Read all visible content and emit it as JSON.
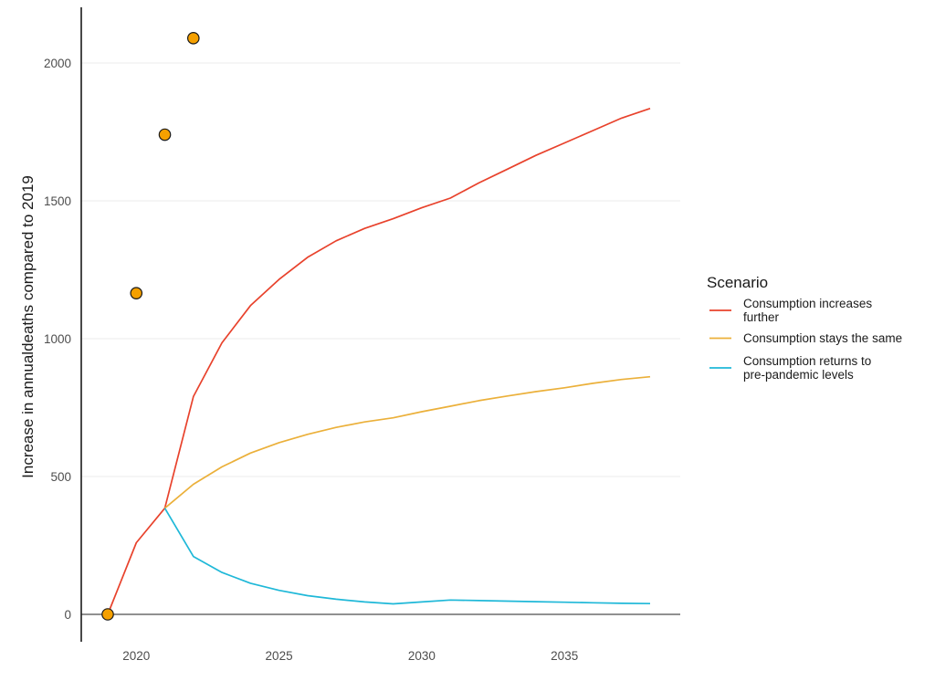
{
  "chart_data": {
    "type": "line",
    "title": "",
    "xlabel": "",
    "ylabel": "Increase in annualdeaths compared to 2019",
    "xlim": [
      2018.1,
      2038.3
    ],
    "ylim": [
      -100,
      2200
    ],
    "x_ticks": [
      2020,
      2025,
      2030,
      2035
    ],
    "x_tick_labels": [
      "2020",
      "2025",
      "2030",
      "2035"
    ],
    "y_ticks": [
      0,
      500,
      1000,
      1500,
      2000
    ],
    "y_tick_labels": [
      "0",
      "500",
      "1000",
      "1500",
      "2000"
    ],
    "grid": true,
    "legend": {
      "title": "Scenario",
      "placement": "right",
      "entries": [
        {
          "lines": [
            "Consumption increases",
            "further"
          ],
          "color": "#e8422c"
        },
        {
          "lines": [
            "Consumption stays the same"
          ],
          "color": "#ebb03a"
        },
        {
          "lines": [
            "Consumption returns to",
            "pre-pandemic levels"
          ],
          "color": "#1fb8d8"
        }
      ]
    },
    "series": [
      {
        "name": "Consumption increases further",
        "color": "#e8422c",
        "x": [
          2019,
          2020,
          2021,
          2022,
          2023,
          2024,
          2025,
          2026,
          2027,
          2028,
          2029,
          2030,
          2031,
          2032,
          2033,
          2034,
          2035,
          2036,
          2037,
          2038
        ],
        "y": [
          0,
          260,
          385,
          790,
          985,
          1120,
          1215,
          1295,
          1355,
          1400,
          1435,
          1475,
          1510,
          1565,
          1615,
          1665,
          1710,
          1755,
          1800,
          1835
        ]
      },
      {
        "name": "Consumption stays the same",
        "color": "#ebb03a",
        "x": [
          2021,
          2022,
          2023,
          2024,
          2025,
          2026,
          2027,
          2028,
          2029,
          2030,
          2031,
          2032,
          2033,
          2034,
          2035,
          2036,
          2037,
          2038
        ],
        "y": [
          385,
          472,
          535,
          585,
          623,
          653,
          678,
          698,
          713,
          735,
          755,
          775,
          792,
          808,
          822,
          838,
          852,
          862
        ]
      },
      {
        "name": "Consumption returns to pre-pandemic levels",
        "color": "#1fb8d8",
        "x": [
          2021,
          2022,
          2023,
          2024,
          2025,
          2026,
          2027,
          2028,
          2029,
          2030,
          2031,
          2032,
          2033,
          2034,
          2035,
          2036,
          2037,
          2038
        ],
        "y": [
          385,
          210,
          152,
          113,
          87,
          68,
          55,
          45,
          38,
          45,
          52,
          50,
          48,
          46,
          44,
          42,
          40,
          39
        ]
      }
    ],
    "observed_points": {
      "color": "#f5a000",
      "x": [
        2019,
        2020,
        2021,
        2022
      ],
      "y": [
        0,
        1165,
        1740,
        2090
      ]
    }
  }
}
